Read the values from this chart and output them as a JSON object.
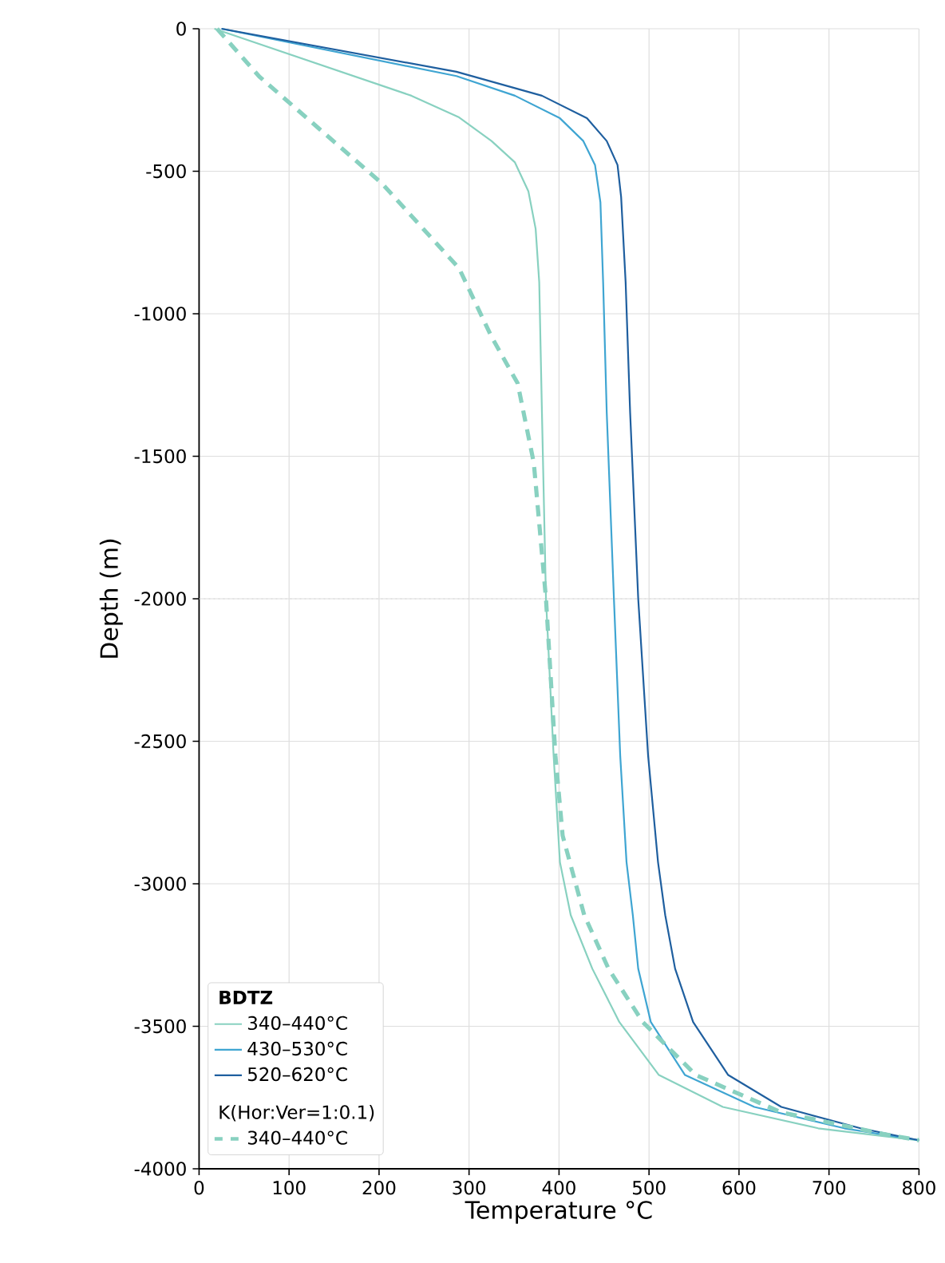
{
  "chart_data": {
    "type": "line",
    "xlabel": "Temperature °C",
    "ylabel": "Depth (m)",
    "legend_title": "BDTZ",
    "annotations": [
      "K(Hor:Ver=1:0.1)"
    ],
    "xlim": [
      0,
      800
    ],
    "ylim": [
      -4000,
      0
    ],
    "xticks": [
      0,
      100,
      200,
      300,
      400,
      500,
      600,
      700,
      800
    ],
    "yticks": [
      -4000,
      -3500,
      -3000,
      -2500,
      -2000,
      -1500,
      -1000,
      -500,
      0
    ],
    "grid": true,
    "legend": "bottom left",
    "marker": "none",
    "ref_lines": [
      {
        "axis": "y",
        "value": -2000,
        "color": "#d9d9d9",
        "line_style": "dotted"
      }
    ],
    "series": [
      {
        "name": "340–440°C",
        "color": "#88d1c0",
        "line_style": "solid",
        "x": [
          17,
          236,
          289,
          325,
          351,
          366,
          374,
          378,
          381,
          385.5,
          394,
          401,
          413,
          437,
          467,
          511,
          582,
          688,
          800
        ],
        "values": [
          0,
          -235,
          -311,
          -394,
          -469,
          -571,
          -702,
          -889,
          -1345,
          -2000,
          -2551,
          -2924,
          -3110,
          -3298,
          -3485,
          -3671,
          -3783,
          -3858,
          -3900
        ]
      },
      {
        "name": "430–530°C",
        "color": "#3fa5d2",
        "line_style": "solid",
        "x": [
          25,
          286,
          351,
          401,
          427,
          440,
          446,
          449,
          453,
          461,
          468,
          475,
          482,
          488,
          502,
          540,
          617,
          717,
          800
        ],
        "values": [
          0,
          -166,
          -235,
          -314,
          -394,
          -478,
          -609,
          -889,
          -1346,
          -2000,
          -2551,
          -2924,
          -3110,
          -3298,
          -3485,
          -3671,
          -3783,
          -3858,
          -3900
        ]
      },
      {
        "name": "520–620°C",
        "color": "#1f5f9f",
        "line_style": "solid",
        "x": [
          25,
          286,
          381,
          431,
          453,
          465,
          469,
          474,
          479,
          488,
          499,
          510,
          518,
          529,
          549,
          588,
          647,
          735,
          800
        ],
        "values": [
          0,
          -151,
          -235,
          -314,
          -394,
          -478,
          -590,
          -889,
          -1346,
          -2000,
          -2551,
          -2924,
          -3110,
          -3298,
          -3485,
          -3671,
          -3783,
          -3858,
          -3900
        ]
      },
      {
        "name": "340–440°C",
        "color": "#88d1c0",
        "line_style": "dashed",
        "x": [
          20,
          67,
          203,
          289,
          325,
          354,
          372,
          385.5,
          396,
          404,
          428,
          455,
          493,
          552,
          647,
          759,
          800
        ],
        "values": [
          0,
          -168,
          -542,
          -841,
          -1081,
          -1244,
          -1524,
          -2000,
          -2551,
          -2831,
          -3110,
          -3298,
          -3485,
          -3671,
          -3802,
          -3877,
          -3900
        ]
      }
    ]
  }
}
